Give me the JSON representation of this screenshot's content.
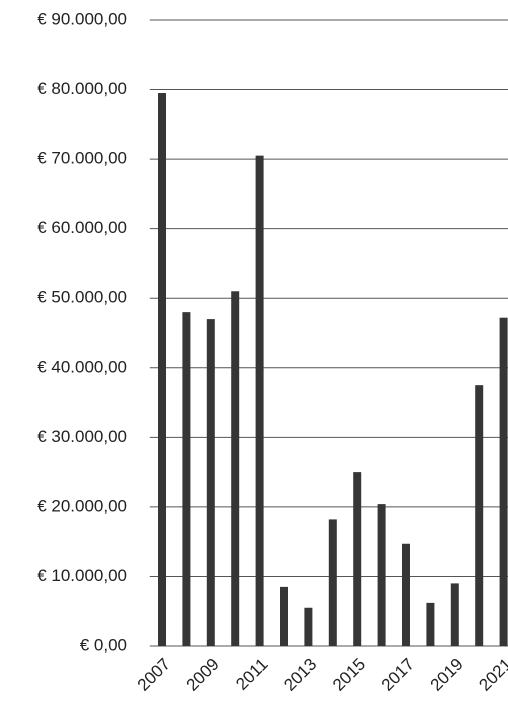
{
  "chart_data": {
    "type": "bar",
    "categories": [
      "2007",
      null,
      "2009",
      null,
      "2011",
      null,
      "2013",
      null,
      "2015",
      null,
      "2017",
      null,
      "2019",
      null,
      "2021"
    ],
    "values": [
      79500,
      48000,
      47000,
      51000,
      70500,
      8500,
      5500,
      18200,
      25000,
      20400,
      14700,
      6200,
      9000,
      37500,
      47200
    ],
    "color": "#363636",
    "ylim": [
      0,
      90000
    ],
    "yticks": [
      {
        "value": 0,
        "label": "€ 0,00"
      },
      {
        "value": 10000,
        "label": "€ 10.000,00"
      },
      {
        "value": 20000,
        "label": "€ 20.000,00"
      },
      {
        "value": 30000,
        "label": "€ 30.000,00"
      },
      {
        "value": 40000,
        "label": "€ 40.000,00"
      },
      {
        "value": 50000,
        "label": "€ 50.000,00"
      },
      {
        "value": 60000,
        "label": "€ 60.000,00"
      },
      {
        "value": 70000,
        "label": "€ 70.000,00"
      },
      {
        "value": 80000,
        "label": "€ 80.000,00"
      },
      {
        "value": 90000,
        "label": "€ 90.000,00"
      }
    ],
    "grid": true
  }
}
